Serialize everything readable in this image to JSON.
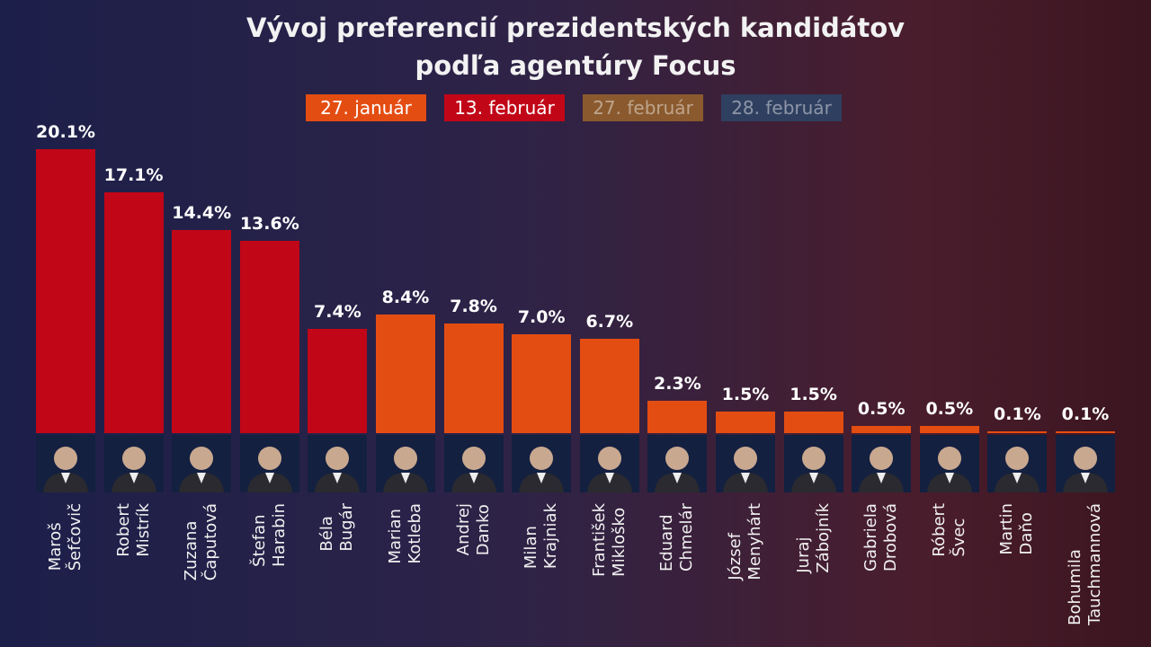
{
  "chart_data": {
    "type": "bar",
    "title": "Vývoj preferencií prezidentských kandidátov podľa agentúry Focus",
    "categories": [
      "Maroš Šefčovič",
      "Robert Mistrík",
      "Zuzana Čaputová",
      "Štefan Harabin",
      "Béla Bugár",
      "Marian Kotleba",
      "Andrej Danko",
      "Milan Krajniak",
      "František Mikloško",
      "Eduard Chmelár",
      "József Menyhárt",
      "Juraj Zábojník",
      "Gabriela Drobová",
      "Róbert Švec",
      "Martin Daňo",
      "Bohumila Tauchmannová"
    ],
    "series": [
      {
        "name": "27. január",
        "color": "#e44d12",
        "values": [
          null,
          null,
          null,
          null,
          null,
          8.4,
          7.8,
          7.0,
          6.7,
          2.3,
          1.5,
          1.5,
          0.5,
          0.5,
          0.1,
          0.1
        ],
        "value_labels": [
          null,
          null,
          null,
          null,
          null,
          "8.4%",
          "7.8%",
          "7.0%",
          "6.7%",
          "2.3%",
          "1.5%",
          "1.5%",
          "0.5%",
          "0.5%",
          "0.1%",
          "0.1%"
        ]
      },
      {
        "name": "13. február",
        "color": "#c10617",
        "values": [
          20.1,
          17.1,
          14.4,
          13.6,
          7.4,
          null,
          null,
          null,
          null,
          null,
          null,
          null,
          null,
          null,
          null,
          null
        ],
        "value_labels": [
          "20.1%",
          "17.1%",
          "14.4%",
          "13.6%",
          "7.4%",
          null,
          null,
          null,
          null,
          null,
          null,
          null,
          null,
          null,
          null,
          null
        ]
      },
      {
        "name": "27. február",
        "color": "#8a5a2e",
        "values": [
          null,
          null,
          null,
          null,
          null,
          null,
          null,
          null,
          null,
          null,
          null,
          null,
          null,
          null,
          null,
          null
        ]
      },
      {
        "name": "28. február",
        "color": "#2f3f5f",
        "values": [
          null,
          null,
          null,
          null,
          null,
          null,
          null,
          null,
          null,
          null,
          null,
          null,
          null,
          null,
          null,
          null
        ]
      }
    ]
  }
}
